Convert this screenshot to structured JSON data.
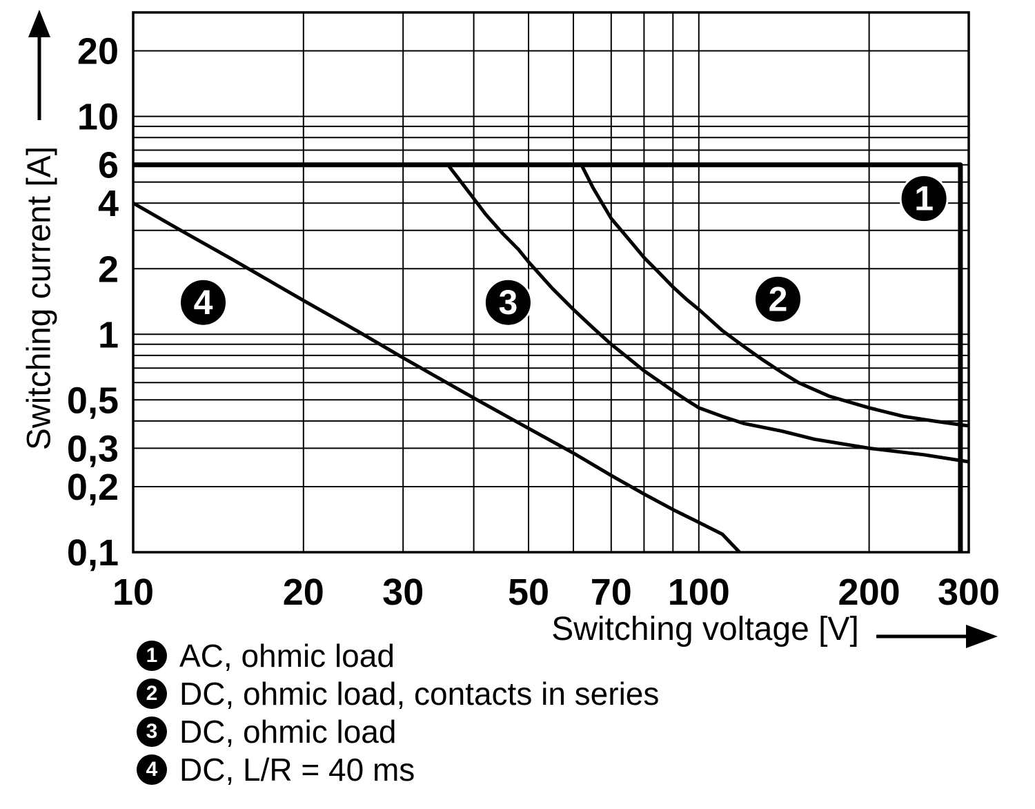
{
  "figure": {
    "background": "#ffffff",
    "line_color": "#000000"
  },
  "chart_data": {
    "type": "line",
    "title": "",
    "xlabel": "Switching voltage [V]",
    "ylabel": "Switching current [A]",
    "x_scale": "log",
    "y_scale": "log",
    "xlim": [
      10,
      300
    ],
    "ylim": [
      0.1,
      30
    ],
    "grid": true,
    "x_ticks": [
      10,
      20,
      30,
      50,
      70,
      100,
      200,
      300
    ],
    "x_tick_labels": [
      "10",
      "20",
      "30",
      "50",
      "70",
      "100",
      "200",
      "300"
    ],
    "y_ticks": [
      20,
      10,
      6,
      4,
      2,
      1,
      0.5,
      0.3,
      0.2,
      0.1
    ],
    "y_tick_labels": [
      "20",
      "10",
      "6",
      "4",
      "2",
      "1",
      "0,5",
      "0,3",
      "0,2",
      "0,1"
    ],
    "x_gridlines": [
      10,
      20,
      30,
      40,
      50,
      60,
      70,
      80,
      90,
      100,
      200,
      300
    ],
    "y_gridlines": [
      0.2,
      0.3,
      0.4,
      0.5,
      0.6,
      0.7,
      0.8,
      0.9,
      1,
      2,
      3,
      4,
      5,
      6,
      7,
      8,
      9,
      10,
      20
    ],
    "series": [
      {
        "name": "1",
        "label": "AC, ohmic load",
        "points": [
          [
            10,
            6
          ],
          [
            290,
            6
          ],
          [
            290,
            0.1
          ]
        ]
      },
      {
        "name": "2",
        "label": "DC, ohmic load, contacts in series",
        "points": [
          [
            62,
            6
          ],
          [
            65,
            4.7
          ],
          [
            70,
            3.4
          ],
          [
            75,
            2.75
          ],
          [
            80,
            2.25
          ],
          [
            85,
            1.92
          ],
          [
            90,
            1.65
          ],
          [
            95,
            1.45
          ],
          [
            100,
            1.3
          ],
          [
            110,
            1.04
          ],
          [
            120,
            0.88
          ],
          [
            130,
            0.76
          ],
          [
            140,
            0.67
          ],
          [
            150,
            0.6
          ],
          [
            170,
            0.52
          ],
          [
            200,
            0.46
          ],
          [
            230,
            0.42
          ],
          [
            260,
            0.4
          ],
          [
            300,
            0.38
          ]
        ]
      },
      {
        "name": "3",
        "label": "DC, ohmic load",
        "points": [
          [
            36,
            6
          ],
          [
            38,
            5
          ],
          [
            40,
            4.2
          ],
          [
            42,
            3.55
          ],
          [
            45,
            2.9
          ],
          [
            48,
            2.45
          ],
          [
            50,
            2.15
          ],
          [
            55,
            1.63
          ],
          [
            60,
            1.3
          ],
          [
            65,
            1.07
          ],
          [
            70,
            0.9
          ],
          [
            75,
            0.78
          ],
          [
            80,
            0.68
          ],
          [
            85,
            0.61
          ],
          [
            90,
            0.55
          ],
          [
            95,
            0.5
          ],
          [
            100,
            0.46
          ],
          [
            110,
            0.42
          ],
          [
            120,
            0.39
          ],
          [
            140,
            0.36
          ],
          [
            160,
            0.33
          ],
          [
            200,
            0.3
          ],
          [
            250,
            0.28
          ],
          [
            300,
            0.26
          ]
        ]
      },
      {
        "name": "4",
        "label": "DC, L/R = 40 ms",
        "points": [
          [
            10,
            4
          ],
          [
            12,
            3.05
          ],
          [
            15,
            2.2
          ],
          [
            20,
            1.43
          ],
          [
            25,
            1.03
          ],
          [
            30,
            0.78
          ],
          [
            40,
            0.51
          ],
          [
            50,
            0.37
          ],
          [
            60,
            0.285
          ],
          [
            70,
            0.225
          ],
          [
            80,
            0.185
          ],
          [
            90,
            0.157
          ],
          [
            100,
            0.137
          ],
          [
            110,
            0.121
          ],
          [
            118,
            0.1
          ]
        ]
      }
    ],
    "annotations": [
      {
        "label": "1",
        "x": 250,
        "y": 4.2
      },
      {
        "label": "2",
        "x": 138,
        "y": 1.45
      },
      {
        "label": "3",
        "x": 46,
        "y": 1.4
      },
      {
        "label": "4",
        "x": 13.3,
        "y": 1.4
      }
    ],
    "legend_position": "below"
  },
  "legend": {
    "items": [
      {
        "marker": "1",
        "text": "AC, ohmic load"
      },
      {
        "marker": "2",
        "text": "DC, ohmic load, contacts in series"
      },
      {
        "marker": "3",
        "text": "DC, ohmic load"
      },
      {
        "marker": "4",
        "text": "DC, L/R = 40 ms"
      }
    ]
  }
}
